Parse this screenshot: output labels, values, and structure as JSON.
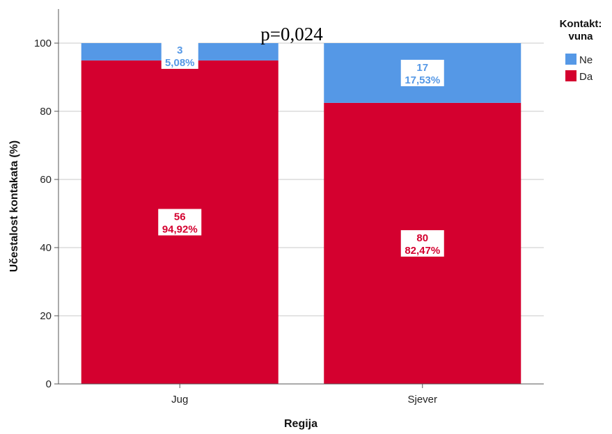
{
  "chart_data": {
    "type": "bar",
    "stacked": true,
    "categories": [
      "Jug",
      "Sjever"
    ],
    "series": [
      {
        "name": "Da",
        "color": "#d4002f",
        "counts": [
          56,
          80
        ],
        "values": [
          94.92,
          82.47
        ],
        "labels": [
          "94,92%",
          "82,47%"
        ]
      },
      {
        "name": "Ne",
        "color": "#5598e6",
        "counts": [
          3,
          17
        ],
        "values": [
          5.08,
          17.53
        ],
        "labels": [
          "5,08%",
          "17,53%"
        ]
      }
    ],
    "xlabel": "Regija",
    "ylabel": "Učestalost kontakata (%)",
    "ylim": [
      0,
      110
    ],
    "yticks": [
      0,
      20,
      40,
      60,
      80,
      100
    ],
    "grid": true,
    "legend": {
      "title_line1": "Kontakt:",
      "title_line2": "vuna",
      "position": "top-right"
    },
    "annotation": "p=0,024"
  }
}
